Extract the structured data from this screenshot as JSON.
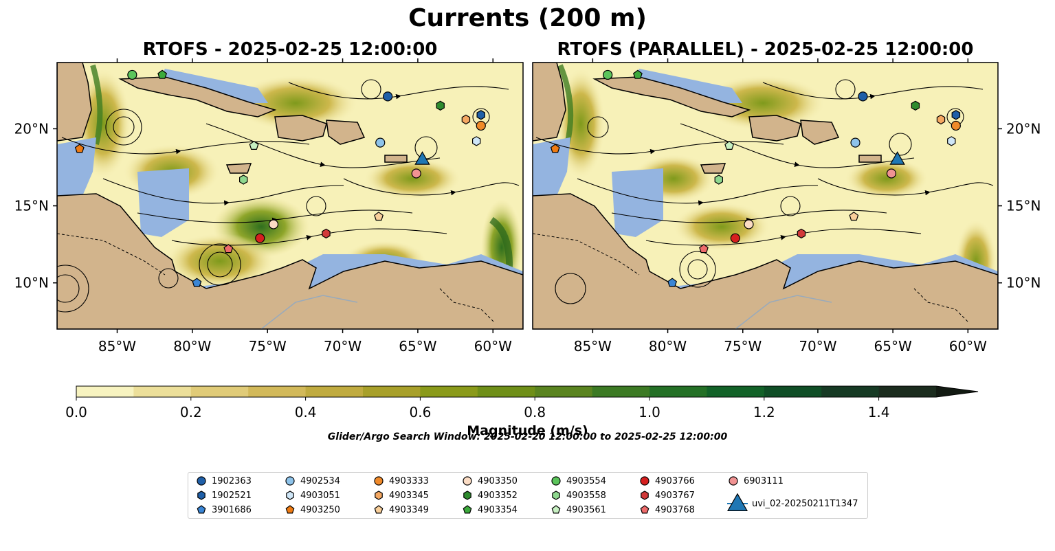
{
  "figure": {
    "suptitle": "Currents (200 m)",
    "panels": [
      {
        "title": "RTOFS - 2025-02-25 12:00:00"
      },
      {
        "title": "RTOFS (PARALLEL) - 2025-02-25 12:00:00"
      }
    ],
    "lon_ticks": [
      "85°W",
      "80°W",
      "75°W",
      "70°W",
      "65°W",
      "60°W"
    ],
    "lat_ticks": [
      "20°N",
      "15°N",
      "10°N"
    ],
    "colorbar": {
      "label": "Magnitude (m/s)",
      "ticks": [
        "0.0",
        "0.2",
        "0.4",
        "0.6",
        "0.8",
        "1.0",
        "1.2",
        "1.4"
      ],
      "range": [
        0,
        1.5
      ],
      "extend": "max"
    },
    "search_window": "Glider/Argo Search Window: 2025-02-20 12:00:00 to 2025-02-25 12:00:00",
    "colors": {
      "land": "#d2b48c",
      "shallow": "#94b4e0",
      "low_speed": "#f7f1b8",
      "high_speed": "#1a2a17"
    }
  },
  "map_data": {
    "extent": {
      "lon": [
        -89,
        -58
      ],
      "lat": [
        7,
        24.3
      ]
    },
    "legend": [
      {
        "id": "1902363",
        "color": "#1f5fa8",
        "marker": "circle"
      },
      {
        "id": "1902521",
        "color": "#1f5fa8",
        "marker": "hexagon"
      },
      {
        "id": "3901686",
        "color": "#3a86d6",
        "marker": "pentagon"
      },
      {
        "id": "4902534",
        "color": "#8ec3ea",
        "marker": "circle"
      },
      {
        "id": "4903051",
        "color": "#cfe6f7",
        "marker": "hexagon"
      },
      {
        "id": "4903250",
        "color": "#ef7b12",
        "marker": "pentagon"
      },
      {
        "id": "4903333",
        "color": "#f08a2a",
        "marker": "circle"
      },
      {
        "id": "4903345",
        "color": "#f5a862",
        "marker": "hexagon"
      },
      {
        "id": "4903349",
        "color": "#f9cf9a",
        "marker": "pentagon"
      },
      {
        "id": "4903350",
        "color": "#fbdcc4",
        "marker": "circle"
      },
      {
        "id": "4903352",
        "color": "#2e8b2e",
        "marker": "hexagon"
      },
      {
        "id": "4903354",
        "color": "#3caa3c",
        "marker": "pentagon"
      },
      {
        "id": "4903554",
        "color": "#5bc45b",
        "marker": "circle"
      },
      {
        "id": "4903558",
        "color": "#8fd88f",
        "marker": "hexagon"
      },
      {
        "id": "4903561",
        "color": "#c7f0c2",
        "marker": "pentagon"
      },
      {
        "id": "4903766",
        "color": "#d61f1f",
        "marker": "circle"
      },
      {
        "id": "4903767",
        "color": "#d23a3a",
        "marker": "hexagon"
      },
      {
        "id": "4903768",
        "color": "#ee6b6b",
        "marker": "pentagon"
      },
      {
        "id": "6903111",
        "color": "#f19393",
        "marker": "circle"
      },
      {
        "id": "uvi_02-20250211T1347",
        "color": "#1f77b4",
        "marker": "triangle"
      }
    ],
    "points_left": [
      {
        "id": "4903554",
        "lon": -84.0,
        "lat": 23.5
      },
      {
        "id": "4903354",
        "lon": -82.0,
        "lat": 23.5
      },
      {
        "id": "1902363",
        "lon": -67.0,
        "lat": 22.1
      },
      {
        "id": "4903352",
        "lon": -63.5,
        "lat": 21.5
      },
      {
        "id": "4903345",
        "lon": -61.8,
        "lat": 20.6
      },
      {
        "id": "1902521",
        "lon": -60.8,
        "lat": 20.9
      },
      {
        "id": "4903333",
        "lon": -60.8,
        "lat": 20.2
      },
      {
        "id": "4903051",
        "lon": -61.1,
        "lat": 19.2
      },
      {
        "id": "4903250",
        "lon": -87.5,
        "lat": 18.7
      },
      {
        "id": "4903561",
        "lon": -75.9,
        "lat": 18.9
      },
      {
        "id": "4902534",
        "lon": -67.5,
        "lat": 19.1
      },
      {
        "id": "uvi_02-20250211T1347",
        "lon": -64.7,
        "lat": 18.0
      },
      {
        "id": "6903111",
        "lon": -65.1,
        "lat": 17.1
      },
      {
        "id": "4903558",
        "lon": -76.6,
        "lat": 16.7
      },
      {
        "id": "4903349",
        "lon": -67.6,
        "lat": 14.3
      },
      {
        "id": "4903350",
        "lon": -74.6,
        "lat": 13.8
      },
      {
        "id": "4903767",
        "lon": -71.1,
        "lat": 13.2
      },
      {
        "id": "4903766",
        "lon": -75.5,
        "lat": 12.9
      },
      {
        "id": "4903768",
        "lon": -77.6,
        "lat": 12.2
      },
      {
        "id": "3901686",
        "lon": -79.7,
        "lat": 10.0
      }
    ],
    "points_right": [
      {
        "id": "4903554",
        "lon": -84.0,
        "lat": 23.5
      },
      {
        "id": "4903354",
        "lon": -82.0,
        "lat": 23.5
      },
      {
        "id": "1902363",
        "lon": -67.0,
        "lat": 22.1
      },
      {
        "id": "4903352",
        "lon": -63.5,
        "lat": 21.5
      },
      {
        "id": "1902521",
        "lon": -60.8,
        "lat": 20.9
      },
      {
        "id": "4903333",
        "lon": -60.8,
        "lat": 20.2
      },
      {
        "id": "4903345",
        "lon": -61.8,
        "lat": 20.6
      },
      {
        "id": "4903051",
        "lon": -61.1,
        "lat": 19.2
      },
      {
        "id": "4903250",
        "lon": -87.5,
        "lat": 18.7
      },
      {
        "id": "4903561",
        "lon": -75.9,
        "lat": 18.9
      },
      {
        "id": "4902534",
        "lon": -67.5,
        "lat": 19.1
      },
      {
        "id": "uvi_02-20250211T1347",
        "lon": -64.7,
        "lat": 18.0
      },
      {
        "id": "6903111",
        "lon": -65.1,
        "lat": 17.1
      },
      {
        "id": "4903558",
        "lon": -76.6,
        "lat": 16.7
      },
      {
        "id": "4903349",
        "lon": -67.6,
        "lat": 14.3
      },
      {
        "id": "4903350",
        "lon": -74.6,
        "lat": 13.8
      },
      {
        "id": "4903767",
        "lon": -71.1,
        "lat": 13.2
      },
      {
        "id": "4903766",
        "lon": -75.5,
        "lat": 12.9
      },
      {
        "id": "4903768",
        "lon": -77.6,
        "lat": 12.2
      },
      {
        "id": "3901686",
        "lon": -79.7,
        "lat": 10.0
      }
    ]
  }
}
